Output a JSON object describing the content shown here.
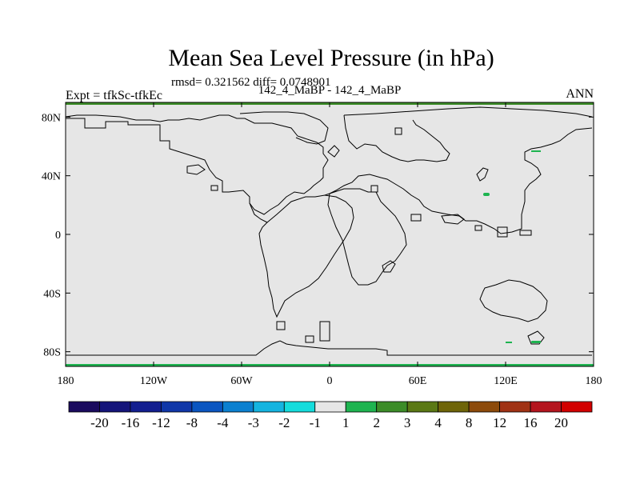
{
  "title": "Mean Sea Level Pressure (in hPa)",
  "stats": "rmsd= 0.321562 diff= 0.0748901",
  "left_label": "Expt = tfkSc-tfkEc",
  "center_label": "142_4_MaBP - 142_4_MaBP",
  "right_label": "ANN",
  "map": {
    "lon_range": [
      -180,
      180
    ],
    "lat_range": [
      -90,
      90
    ],
    "background_color": "#e6e6e6",
    "lat_ticks": [
      {
        "value": 80,
        "label": "80N"
      },
      {
        "value": 40,
        "label": "40N"
      },
      {
        "value": 0,
        "label": "0"
      },
      {
        "value": -40,
        "label": "40S"
      },
      {
        "value": -80,
        "label": "80S"
      }
    ],
    "lon_ticks": [
      {
        "value": -180,
        "label": "180"
      },
      {
        "value": -120,
        "label": "120W"
      },
      {
        "value": -60,
        "label": "60W"
      },
      {
        "value": 0,
        "label": "0"
      },
      {
        "value": 60,
        "label": "60E"
      },
      {
        "value": 120,
        "label": "120E"
      },
      {
        "value": 180,
        "label": "180"
      }
    ]
  },
  "colorbar": {
    "colors": [
      "#1a0a5e",
      "#14147a",
      "#121e8f",
      "#1037a8",
      "#0a55c0",
      "#0b80d0",
      "#14b4e0",
      "#14dcdc",
      "#e6e6e6",
      "#1eb450",
      "#3c8c28",
      "#5a7814",
      "#6e6408",
      "#8c4a0a",
      "#a03214",
      "#b4141e",
      "#d20000"
    ],
    "labels": [
      "-20",
      "-16",
      "-12",
      "-8",
      "-4",
      "-3",
      "-2",
      "-1",
      "1",
      "2",
      "3",
      "4",
      "8",
      "12",
      "16",
      "20"
    ]
  }
}
